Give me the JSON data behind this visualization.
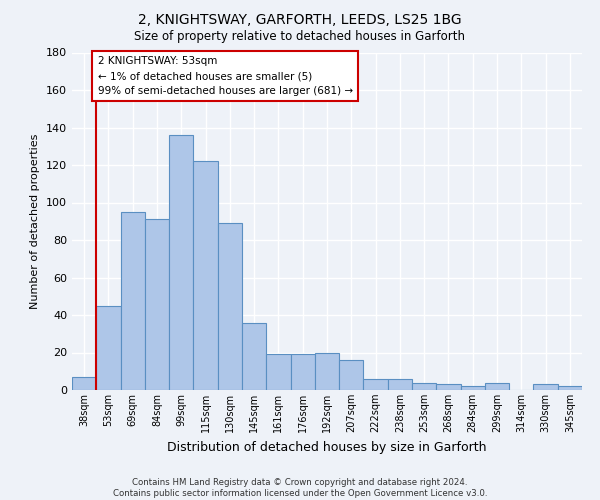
{
  "title_line1": "2, KNIGHTSWAY, GARFORTH, LEEDS, LS25 1BG",
  "title_line2": "Size of property relative to detached houses in Garforth",
  "xlabel": "Distribution of detached houses by size in Garforth",
  "ylabel": "Number of detached properties",
  "categories": [
    "38sqm",
    "53sqm",
    "69sqm",
    "84sqm",
    "99sqm",
    "115sqm",
    "130sqm",
    "145sqm",
    "161sqm",
    "176sqm",
    "192sqm",
    "207sqm",
    "222sqm",
    "238sqm",
    "253sqm",
    "268sqm",
    "284sqm",
    "299sqm",
    "314sqm",
    "330sqm",
    "345sqm"
  ],
  "values": [
    7,
    45,
    95,
    91,
    136,
    122,
    89,
    36,
    19,
    19,
    20,
    16,
    6,
    6,
    4,
    3,
    2,
    4,
    0,
    3,
    2
  ],
  "bar_color": "#aec6e8",
  "bar_edge_color": "#5a8fc2",
  "background_color": "#eef2f8",
  "grid_color": "#ffffff",
  "vline_x": 0.5,
  "vline_color": "#cc0000",
  "annotation_text": "2 KNIGHTSWAY: 53sqm\n← 1% of detached houses are smaller (5)\n99% of semi-detached houses are larger (681) →",
  "annotation_box_color": "#ffffff",
  "annotation_box_edge_color": "#cc0000",
  "ylim": [
    0,
    180
  ],
  "yticks": [
    0,
    20,
    40,
    60,
    80,
    100,
    120,
    140,
    160,
    180
  ],
  "footer_line1": "Contains HM Land Registry data © Crown copyright and database right 2024.",
  "footer_line2": "Contains public sector information licensed under the Open Government Licence v3.0."
}
